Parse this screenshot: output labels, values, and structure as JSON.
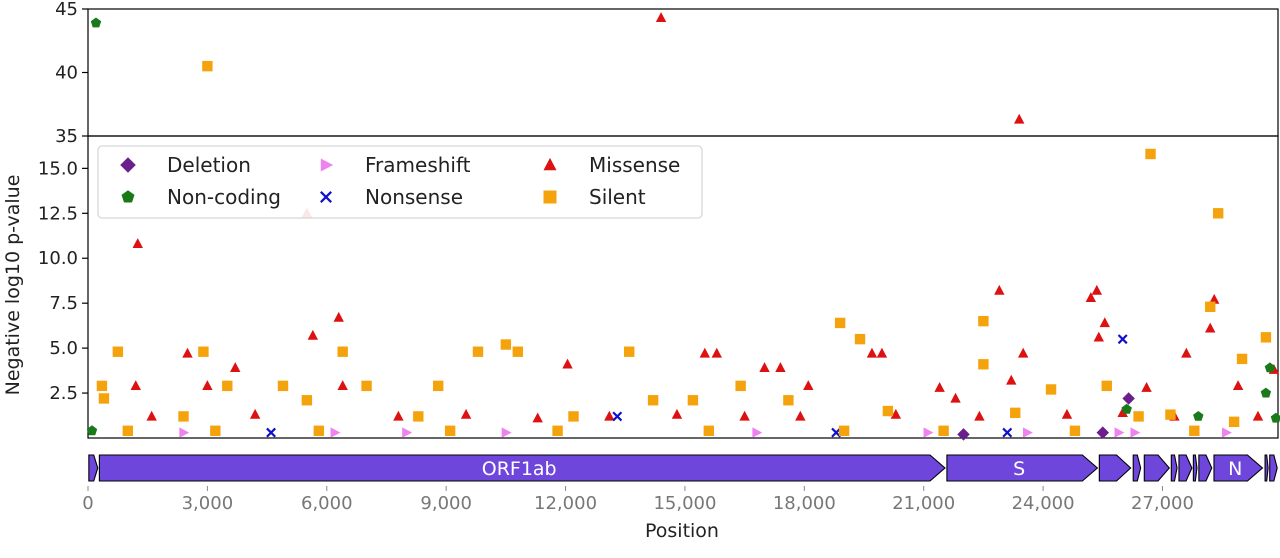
{
  "chart_data": {
    "type": "scatter",
    "xlabel": "Position",
    "ylabel": "Negative log10 p-value",
    "xlim": [
      0,
      29903
    ],
    "upper_ylim": [
      35,
      45
    ],
    "lower_ylim": [
      0,
      16.8
    ],
    "x_ticks": [
      "0",
      "3,000",
      "6,000",
      "9,000",
      "12,000",
      "15,000",
      "18,000",
      "21,000",
      "24,000",
      "27,000"
    ],
    "upper_y_ticks": [
      "35",
      "40",
      "45"
    ],
    "lower_y_ticks": [
      "2.5",
      "5.0",
      "7.5",
      "10.0",
      "12.5",
      "15.0"
    ],
    "legend_position": "top-left",
    "series": [
      {
        "name": "Deletion",
        "color": "#6b1f8c",
        "marker": "diamond",
        "points": [
          [
            22000,
            0.2
          ],
          [
            25500,
            0.3
          ],
          [
            26150,
            2.2
          ]
        ]
      },
      {
        "name": "Frameshift",
        "color": "#ee82ee",
        "marker": "triangle-right",
        "points": [
          [
            2400,
            0.3
          ],
          [
            6200,
            0.3
          ],
          [
            8000,
            0.3
          ],
          [
            10500,
            0.3
          ],
          [
            16800,
            0.3
          ],
          [
            21100,
            0.3
          ],
          [
            23600,
            0.3
          ],
          [
            25900,
            0.3
          ],
          [
            26300,
            0.3
          ],
          [
            28600,
            0.3
          ]
        ]
      },
      {
        "name": "Missense",
        "color": "#dd1111",
        "marker": "triangle",
        "points": [
          [
            14400,
            44.3
          ],
          [
            23400,
            36.3
          ],
          [
            1250,
            10.8
          ],
          [
            5500,
            12.5
          ],
          [
            6300,
            6.7
          ],
          [
            5650,
            5.7
          ],
          [
            2500,
            4.7
          ],
          [
            3700,
            3.9
          ],
          [
            12050,
            4.1
          ],
          [
            15500,
            4.7
          ],
          [
            15800,
            4.7
          ],
          [
            17000,
            3.9
          ],
          [
            17400,
            3.9
          ],
          [
            19700,
            4.7
          ],
          [
            19950,
            4.7
          ],
          [
            22900,
            8.2
          ],
          [
            23500,
            4.7
          ],
          [
            25200,
            7.8
          ],
          [
            25350,
            8.2
          ],
          [
            25550,
            6.4
          ],
          [
            25400,
            5.6
          ],
          [
            28300,
            7.7
          ],
          [
            28200,
            6.1
          ],
          [
            26600,
            2.8
          ],
          [
            27600,
            4.7
          ],
          [
            1200,
            2.9
          ],
          [
            3000,
            2.9
          ],
          [
            6400,
            2.9
          ],
          [
            18100,
            2.9
          ],
          [
            21400,
            2.8
          ],
          [
            21800,
            2.2
          ],
          [
            23200,
            3.2
          ],
          [
            28900,
            2.9
          ],
          [
            29800,
            3.8
          ],
          [
            1600,
            1.2
          ],
          [
            4200,
            1.3
          ],
          [
            7800,
            1.2
          ],
          [
            9500,
            1.3
          ],
          [
            11300,
            1.1
          ],
          [
            13100,
            1.2
          ],
          [
            14800,
            1.3
          ],
          [
            16500,
            1.2
          ],
          [
            17900,
            1.2
          ],
          [
            20300,
            1.3
          ],
          [
            22400,
            1.2
          ],
          [
            24600,
            1.3
          ],
          [
            26000,
            1.4
          ],
          [
            27300,
            1.2
          ],
          [
            29400,
            1.2
          ]
        ]
      },
      {
        "name": "Non-coding",
        "color": "#1a7a1a",
        "marker": "pentagon",
        "points": [
          [
            200,
            43.9
          ],
          [
            29700,
            3.9
          ],
          [
            29600,
            2.5
          ],
          [
            27900,
            1.2
          ],
          [
            26100,
            1.6
          ],
          [
            29850,
            1.1
          ],
          [
            100,
            0.4
          ]
        ]
      },
      {
        "name": "Nonsense",
        "color": "#1010cc",
        "marker": "x",
        "points": [
          [
            26000,
            5.5
          ],
          [
            13300,
            1.2
          ],
          [
            23100,
            0.3
          ],
          [
            4600,
            0.3
          ],
          [
            18800,
            0.3
          ]
        ]
      },
      {
        "name": "Silent",
        "color": "#f5a30c",
        "marker": "square",
        "points": [
          [
            3000,
            40.5
          ],
          [
            26700,
            15.8
          ],
          [
            28400,
            12.5
          ],
          [
            18900,
            6.4
          ],
          [
            22500,
            6.5
          ],
          [
            19400,
            5.5
          ],
          [
            29600,
            5.6
          ],
          [
            28200,
            7.3
          ],
          [
            750,
            4.8
          ],
          [
            2900,
            4.8
          ],
          [
            6400,
            4.8
          ],
          [
            9800,
            4.8
          ],
          [
            10500,
            5.2
          ],
          [
            10800,
            4.8
          ],
          [
            13600,
            4.8
          ],
          [
            22500,
            4.1
          ],
          [
            29000,
            4.4
          ],
          [
            350,
            2.9
          ],
          [
            3500,
            2.9
          ],
          [
            4900,
            2.9
          ],
          [
            7000,
            2.9
          ],
          [
            8800,
            2.9
          ],
          [
            16400,
            2.9
          ],
          [
            24200,
            2.7
          ],
          [
            25600,
            2.9
          ],
          [
            27200,
            1.3
          ],
          [
            400,
            2.2
          ],
          [
            5500,
            2.1
          ],
          [
            14200,
            2.1
          ],
          [
            15200,
            2.1
          ],
          [
            17600,
            2.1
          ],
          [
            20100,
            1.5
          ],
          [
            23300,
            1.4
          ],
          [
            2400,
            1.2
          ],
          [
            8300,
            1.2
          ],
          [
            12200,
            1.2
          ],
          [
            26400,
            1.2
          ],
          [
            28800,
            0.9
          ],
          [
            1000,
            0.4
          ],
          [
            3200,
            0.4
          ],
          [
            5800,
            0.4
          ],
          [
            9100,
            0.4
          ],
          [
            11800,
            0.4
          ],
          [
            15600,
            0.4
          ],
          [
            19000,
            0.4
          ],
          [
            21500,
            0.4
          ],
          [
            24800,
            0.4
          ],
          [
            27800,
            0.4
          ]
        ]
      }
    ],
    "genes": [
      {
        "label": "",
        "start": 1,
        "end": 265
      },
      {
        "label": "ORF1ab",
        "start": 266,
        "end": 21555
      },
      {
        "label": "S",
        "start": 21563,
        "end": 25384
      },
      {
        "label": "",
        "start": 25393,
        "end": 26220
      },
      {
        "label": "",
        "start": 26245,
        "end": 26472
      },
      {
        "label": "",
        "start": 26523,
        "end": 27191
      },
      {
        "label": "",
        "start": 27202,
        "end": 27387
      },
      {
        "label": "",
        "start": 27394,
        "end": 27759
      },
      {
        "label": "",
        "start": 27756,
        "end": 27887
      },
      {
        "label": "",
        "start": 27894,
        "end": 28259
      },
      {
        "label": "N",
        "start": 28274,
        "end": 29533
      },
      {
        "label": "",
        "start": 29558,
        "end": 29674
      },
      {
        "label": "",
        "start": 29675,
        "end": 29903
      }
    ],
    "gene_color": "#6f46db"
  }
}
